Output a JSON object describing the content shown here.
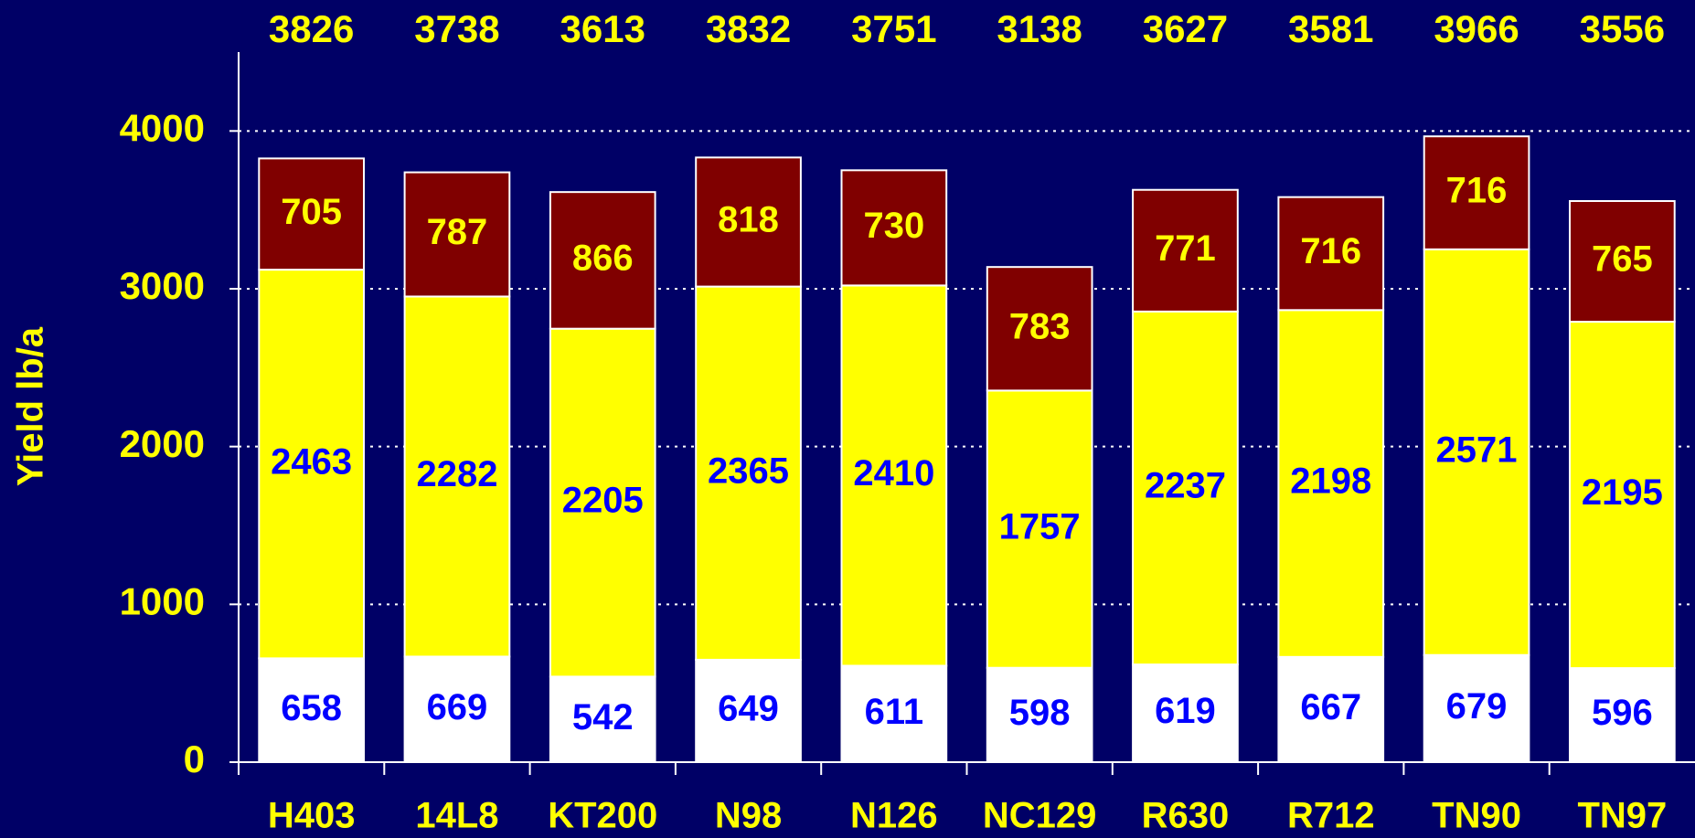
{
  "chart_data": {
    "type": "stacked_bar",
    "y_label": "Yield lb/a",
    "categories": [
      "H403",
      "14L8",
      "KT200",
      "N98",
      "N126",
      "NC129",
      "R630",
      "R712",
      "TN90",
      "TN97"
    ],
    "series": [
      {
        "color": "#ffffff",
        "label_color": "#0000ff",
        "values": [
          658,
          669,
          542,
          649,
          611,
          598,
          619,
          667,
          679,
          596
        ]
      },
      {
        "color": "#ffff00",
        "label_color": "#0000ff",
        "values": [
          2463,
          2282,
          2205,
          2365,
          2410,
          1757,
          2237,
          2198,
          2571,
          2195
        ]
      },
      {
        "color": "#800000",
        "label_color": "#ffff00",
        "values": [
          705,
          787,
          866,
          818,
          730,
          783,
          771,
          716,
          716,
          765
        ]
      }
    ],
    "totals": [
      3826,
      3738,
      3613,
      3832,
      3751,
      3138,
      3627,
      3581,
      3966,
      3556
    ],
    "ylim": [
      0,
      4500
    ],
    "yticks": [
      0,
      1000,
      2000,
      3000,
      4000
    ],
    "grid": true
  }
}
